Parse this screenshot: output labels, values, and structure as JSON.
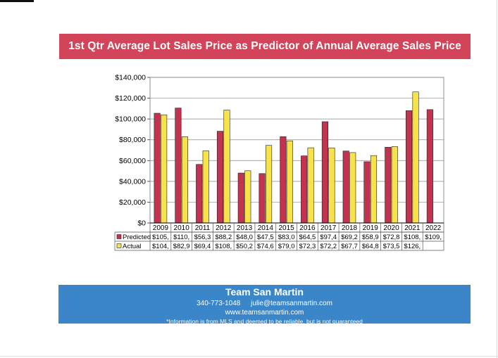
{
  "title": "1st Qtr Average Lot Sales Price as Predictor of Annual Average Sales Price",
  "colors": {
    "title_bg": "#d2445a",
    "predicted": "#c3324e",
    "actual": "#f7e24a",
    "footer_bg": "#3b86c8"
  },
  "chart_data": {
    "type": "bar",
    "title": "1st Qtr Average Lot Sales Price as Predictor of Annual Average Sales Price",
    "categories": [
      "2009",
      "2010",
      "2011",
      "2012",
      "2013",
      "2014",
      "2015",
      "2016",
      "2017",
      "2018",
      "2019",
      "2020",
      "2021",
      "2022"
    ],
    "series": [
      {
        "name": "Predicted",
        "color": "#c3324e",
        "values": [
          105500,
          110500,
          56300,
          88200,
          48000,
          47500,
          83000,
          64500,
          97400,
          69200,
          58900,
          72800,
          108000,
          109000
        ],
        "table_labels": [
          "$105,",
          "$110,",
          "$56,3",
          "$88,2",
          "$48,0",
          "$47,5",
          "$83,0",
          "$64,5",
          "$97,4",
          "$69,2",
          "$58,9",
          "$72,8",
          "$108,",
          "$109,"
        ]
      },
      {
        "name": "Actual",
        "color": "#f7e24a",
        "values": [
          104000,
          82900,
          69400,
          108500,
          50200,
          74600,
          79000,
          72300,
          72200,
          67700,
          64800,
          73500,
          126000,
          null
        ],
        "table_labels": [
          "$104,",
          "$82,9",
          "$69,4",
          "$108,",
          "$50,2",
          "$74,6",
          "$79,0",
          "$72,3",
          "$72,2",
          "$67,7",
          "$64,8",
          "$73,5",
          "$126,",
          ""
        ]
      }
    ],
    "ylim": [
      0,
      140000
    ],
    "yticks": [
      0,
      20000,
      40000,
      60000,
      80000,
      100000,
      120000,
      140000
    ],
    "ytick_labels": [
      "$0",
      "$20,000",
      "$40,000",
      "$60,000",
      "$80,000",
      "$100,000",
      "$120,000",
      "$140,000"
    ],
    "grid": true,
    "legend": "data-table"
  },
  "footer": {
    "company": "Team San Martin",
    "phone": "340-773-1048",
    "email": "julie@teamsanmartin.com",
    "website": "www.teamsanmartin.com",
    "disclaimer": "*Information is from MLS and deemed to be reliable, but is not guaranteed"
  }
}
